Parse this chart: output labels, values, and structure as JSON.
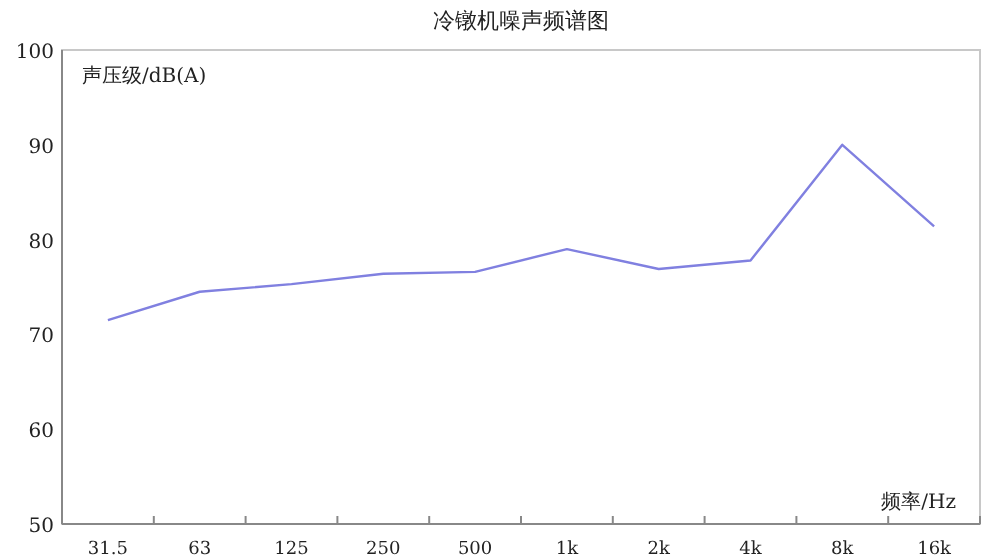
{
  "chart_data": {
    "type": "line",
    "title": "冷镦机噪声频谱图",
    "ylabel": "声压级/dB(A)",
    "xlabel": "频率/Hz",
    "categories": [
      "31.5",
      "63",
      "125",
      "250",
      "500",
      "1k",
      "2k",
      "4k",
      "8k",
      "16k"
    ],
    "series": [
      {
        "color": "#8080e0",
        "values": [
          71.5,
          74.5,
          75.3,
          76.4,
          76.6,
          79.0,
          76.9,
          77.8,
          90.0,
          81.4
        ]
      }
    ],
    "ylim": [
      50,
      100
    ],
    "yticks": [
      50,
      60,
      70,
      80,
      90,
      100
    ],
    "grid": false,
    "marker": "none"
  }
}
